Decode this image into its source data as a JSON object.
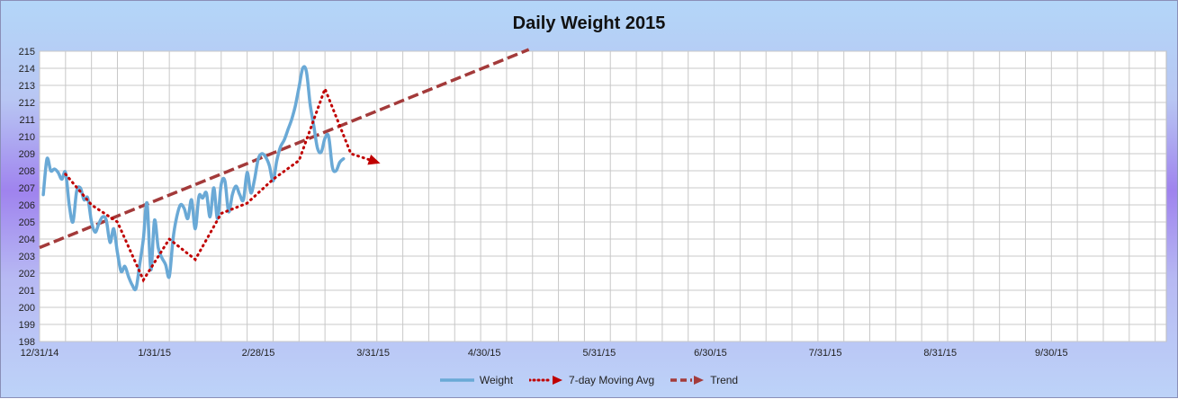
{
  "chart_data": {
    "type": "line",
    "title": "Daily Weight 2015",
    "xlabel": "",
    "ylabel": "",
    "ylim": [
      198,
      215
    ],
    "yticks": [
      198,
      199,
      200,
      201,
      202,
      203,
      204,
      205,
      206,
      207,
      208,
      209,
      210,
      211,
      212,
      213,
      214,
      215
    ],
    "xlim": [
      0,
      304
    ],
    "x_tick_labels": [
      "12/31/14",
      "1/31/15",
      "2/28/15",
      "3/31/15",
      "4/30/15",
      "5/31/15",
      "6/30/15",
      "7/31/15",
      "8/31/15",
      "9/30/15"
    ],
    "x_tick_days": [
      0,
      31,
      59,
      90,
      120,
      151,
      181,
      212,
      243,
      273
    ],
    "grid": true,
    "legend": "bottom",
    "colors": {
      "weight": "#6aa9d6",
      "moving_avg": "#c00000",
      "trend": "#a33a3a",
      "grid": "#c8c8c8"
    },
    "series": [
      {
        "name": "Weight",
        "style": "solid",
        "points": [
          [
            "1/1/15",
            206.6
          ],
          [
            "1/2/15",
            208.7
          ],
          [
            "1/3/15",
            208.0
          ],
          [
            "1/4/15",
            208.1
          ],
          [
            "1/5/15",
            207.9
          ],
          [
            "1/6/15",
            207.5
          ],
          [
            "1/7/15",
            207.9
          ],
          [
            "1/8/15",
            206.0
          ],
          [
            "1/9/15",
            205.0
          ],
          [
            "1/10/15",
            206.8
          ],
          [
            "1/11/15",
            207.0
          ],
          [
            "1/12/15",
            206.3
          ],
          [
            "1/13/15",
            206.4
          ],
          [
            "1/14/15",
            205.0
          ],
          [
            "1/15/15",
            204.4
          ],
          [
            "1/16/15",
            204.9
          ],
          [
            "1/17/15",
            205.3
          ],
          [
            "1/18/15",
            205.1
          ],
          [
            "1/19/15",
            203.8
          ],
          [
            "1/20/15",
            204.6
          ],
          [
            "1/21/15",
            203.2
          ],
          [
            "1/22/15",
            202.1
          ],
          [
            "1/23/15",
            202.4
          ],
          [
            "1/24/15",
            201.8
          ],
          [
            "1/25/15",
            201.3
          ],
          [
            "1/26/15",
            201.1
          ],
          [
            "1/27/15",
            202.5
          ],
          [
            "1/28/15",
            204.0
          ],
          [
            "1/29/15",
            206.1
          ],
          [
            "1/30/15",
            202.2
          ],
          [
            "1/31/15",
            205.1
          ],
          [
            "2/1/15",
            203.5
          ],
          [
            "2/2/15",
            202.9
          ],
          [
            "2/3/15",
            202.5
          ],
          [
            "2/4/15",
            201.8
          ],
          [
            "2/5/15",
            204.0
          ],
          [
            "2/6/15",
            205.3
          ],
          [
            "2/7/15",
            206.0
          ],
          [
            "2/8/15",
            205.8
          ],
          [
            "2/9/15",
            205.2
          ],
          [
            "2/10/15",
            206.3
          ],
          [
            "2/11/15",
            204.6
          ],
          [
            "2/12/15",
            206.5
          ],
          [
            "2/13/15",
            206.4
          ],
          [
            "2/14/15",
            206.7
          ],
          [
            "2/15/15",
            205.3
          ],
          [
            "2/16/15",
            207.0
          ],
          [
            "2/17/15",
            205.2
          ],
          [
            "2/18/15",
            207.2
          ],
          [
            "2/19/15",
            207.4
          ],
          [
            "2/20/15",
            205.6
          ],
          [
            "2/21/15",
            206.6
          ],
          [
            "2/22/15",
            207.1
          ],
          [
            "2/23/15",
            206.6
          ],
          [
            "2/24/15",
            206.3
          ],
          [
            "2/25/15",
            207.9
          ],
          [
            "2/26/15",
            206.7
          ],
          [
            "2/27/15",
            207.5
          ],
          [
            "2/28/15",
            208.7
          ],
          [
            "3/1/15",
            209.0
          ],
          [
            "3/2/15",
            208.8
          ],
          [
            "3/3/15",
            208.3
          ],
          [
            "3/4/15",
            207.4
          ],
          [
            "3/5/15",
            208.6
          ],
          [
            "3/6/15",
            209.4
          ],
          [
            "3/7/15",
            209.8
          ],
          [
            "3/8/15",
            210.4
          ],
          [
            "3/9/15",
            211.0
          ],
          [
            "3/10/15",
            211.8
          ],
          [
            "3/11/15",
            212.9
          ],
          [
            "3/12/15",
            214.0
          ],
          [
            "3/13/15",
            213.8
          ],
          [
            "3/14/15",
            211.9
          ],
          [
            "3/15/15",
            210.6
          ],
          [
            "3/16/15",
            209.3
          ],
          [
            "3/17/15",
            209.1
          ],
          [
            "3/18/15",
            209.9
          ],
          [
            "3/19/15",
            210.0
          ],
          [
            "3/20/15",
            208.2
          ],
          [
            "3/21/15",
            208.0
          ],
          [
            "3/22/15",
            208.5
          ],
          [
            "3/23/15",
            208.7
          ]
        ]
      },
      {
        "name": "7-day Moving Avg",
        "style": "dotted",
        "points": [
          [
            "1/7/15",
            207.8
          ],
          [
            "1/14/15",
            206.0
          ],
          [
            "1/21/15",
            205.0
          ],
          [
            "1/28/15",
            201.6
          ],
          [
            "2/4/15",
            204.0
          ],
          [
            "2/11/15",
            202.8
          ],
          [
            "2/18/15",
            205.5
          ],
          [
            "2/25/15",
            206.1
          ],
          [
            "3/4/15",
            207.5
          ],
          [
            "3/11/15",
            208.6
          ],
          [
            "3/18/15",
            212.8
          ],
          [
            "3/25/15",
            209.0
          ],
          [
            "4/1/15",
            208.5
          ]
        ]
      },
      {
        "name": "Trend",
        "style": "dashed",
        "points": [
          [
            "12/31/14",
            203.5
          ],
          [
            "5/12/15",
            215.1
          ]
        ]
      }
    ]
  }
}
